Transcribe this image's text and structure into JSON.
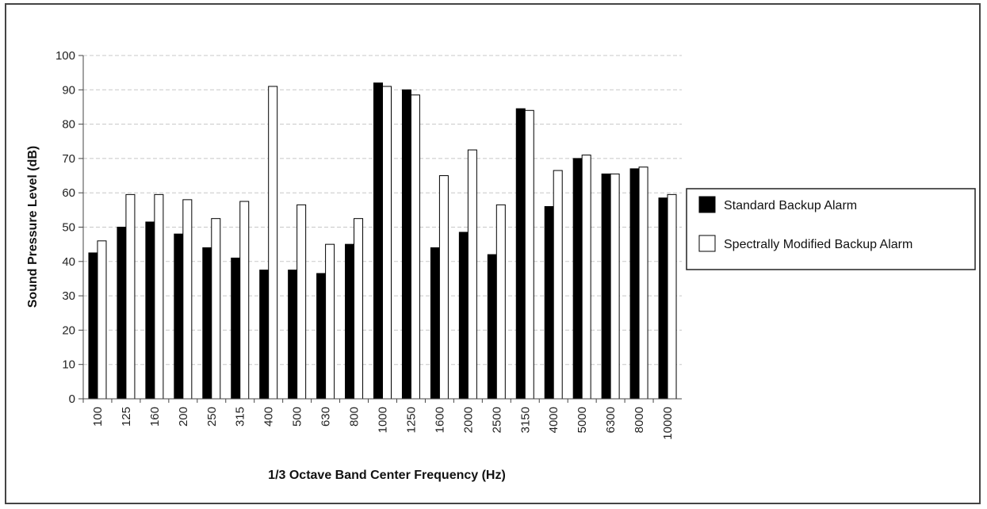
{
  "chart_data": {
    "type": "bar",
    "title": "",
    "xlabel": "1/3 Octave Band Center Frequency (Hz)",
    "ylabel": "Sound Pressure Level (dB)",
    "ylim": [
      0,
      100
    ],
    "yticks": [
      "0",
      "10",
      "20",
      "30",
      "40",
      "50",
      "60",
      "70",
      "80",
      "90",
      "100"
    ],
    "grid": "horizontal dashed",
    "legend_position": "right",
    "categories": [
      "100",
      "125",
      "160",
      "200",
      "250",
      "315",
      "400",
      "500",
      "630",
      "800",
      "1000",
      "1250",
      "1600",
      "2000",
      "2500",
      "3150",
      "4000",
      "5000",
      "6300",
      "8000",
      "10000"
    ],
    "series": [
      {
        "name": "Standard Backup Alarm",
        "color": "#000000",
        "values": [
          42.5,
          50,
          51.5,
          48,
          44,
          41,
          37.5,
          37.5,
          36.5,
          45,
          92,
          90,
          44,
          48.5,
          42,
          84.5,
          56,
          70,
          65.5,
          67,
          58.5
        ]
      },
      {
        "name": "Spectrally Modified Backup Alarm",
        "color": "#ffffff",
        "values": [
          46,
          59.5,
          59.5,
          58,
          52.5,
          57.5,
          91,
          56.5,
          45,
          52.5,
          91,
          88.5,
          65,
          72.5,
          56.5,
          84,
          66.5,
          71,
          65.5,
          67.5,
          59.5
        ]
      }
    ]
  }
}
